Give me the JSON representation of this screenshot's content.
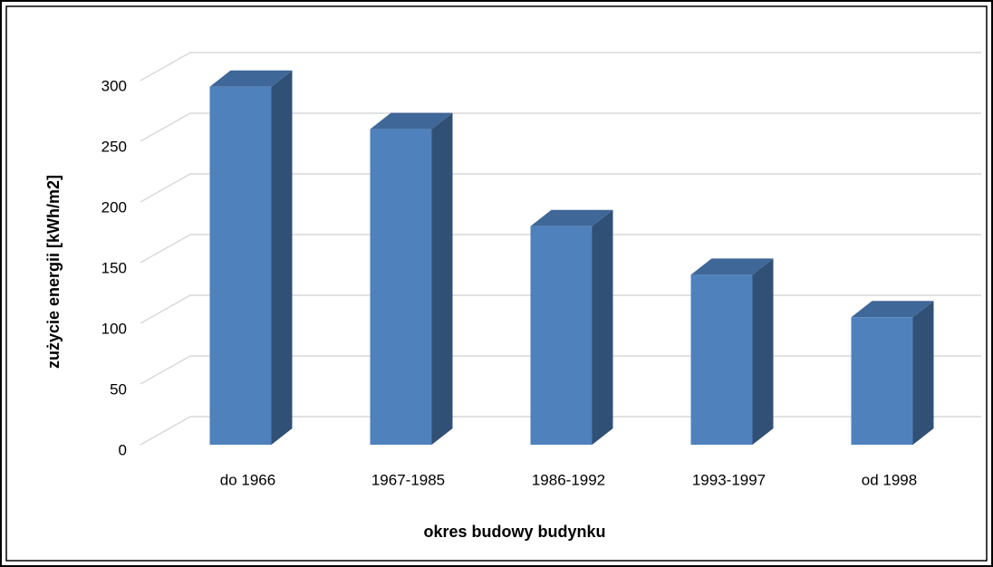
{
  "chart_data": {
    "type": "bar3d",
    "x_label": "okres budowy budynku",
    "y_label": "zużycie energii [kWh/m2]",
    "categories": [
      "do 1966",
      "1967-1985",
      "1986-1992",
      "1993-1997",
      "od 1998"
    ],
    "values": [
      295,
      260,
      180,
      140,
      105
    ],
    "color": "#4f81bd",
    "ylim": [
      0,
      300
    ],
    "yticks": [
      0,
      50,
      100,
      150,
      200,
      250,
      300
    ],
    "grid": true
  }
}
